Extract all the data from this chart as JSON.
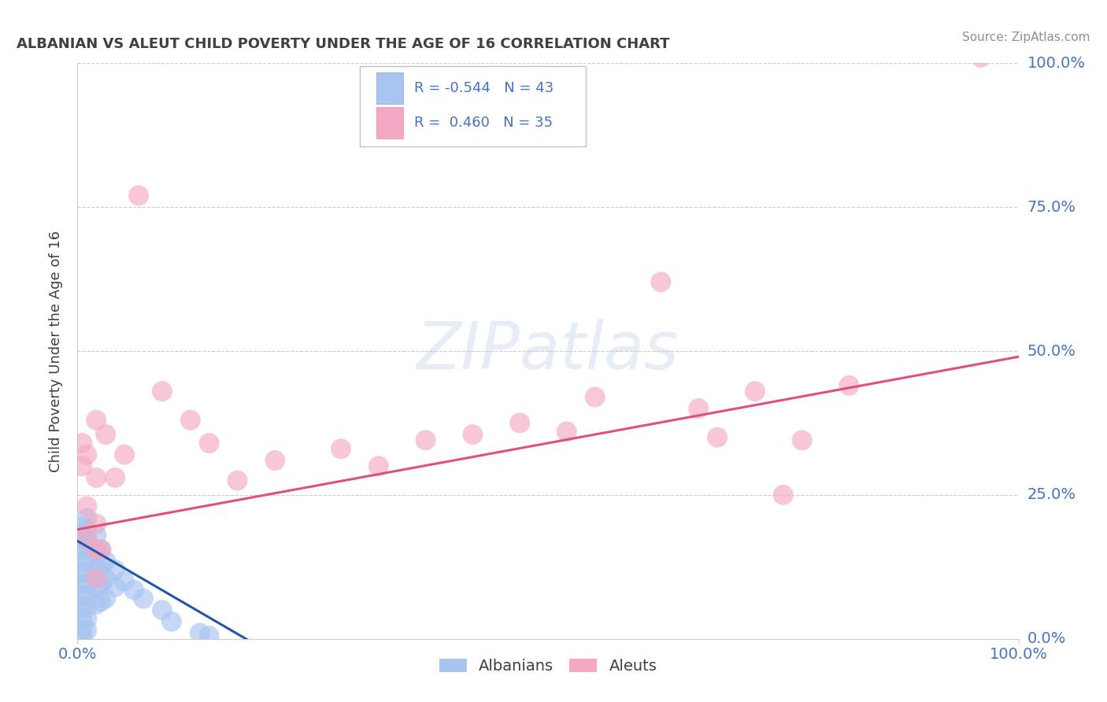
{
  "title": "ALBANIAN VS ALEUT CHILD POVERTY UNDER THE AGE OF 16 CORRELATION CHART",
  "source": "Source: ZipAtlas.com",
  "ylabel": "Child Poverty Under the Age of 16",
  "xlim": [
    0.0,
    1.0
  ],
  "ylim": [
    0.0,
    1.0
  ],
  "ytick_labels": [
    "0.0%",
    "25.0%",
    "50.0%",
    "75.0%",
    "100.0%"
  ],
  "ytick_positions": [
    0.0,
    0.25,
    0.5,
    0.75,
    1.0
  ],
  "grid_color": "#cccccc",
  "albanian_color": "#a8c4f0",
  "aleut_color": "#f4a8c4",
  "albanian_line_color": "#2255aa",
  "aleut_line_color": "#e0507a",
  "legend_r_albanian": "-0.544",
  "legend_n_albanian": "43",
  "legend_r_aleut": "0.460",
  "legend_n_aleut": "35",
  "albanian_scatter": [
    [
      0.005,
      0.195
    ],
    [
      0.005,
      0.175
    ],
    [
      0.005,
      0.155
    ],
    [
      0.005,
      0.135
    ],
    [
      0.005,
      0.115
    ],
    [
      0.005,
      0.095
    ],
    [
      0.005,
      0.075
    ],
    [
      0.005,
      0.055
    ],
    [
      0.005,
      0.035
    ],
    [
      0.005,
      0.015
    ],
    [
      0.005,
      0.005
    ],
    [
      0.01,
      0.21
    ],
    [
      0.01,
      0.19
    ],
    [
      0.01,
      0.17
    ],
    [
      0.01,
      0.155
    ],
    [
      0.01,
      0.135
    ],
    [
      0.01,
      0.115
    ],
    [
      0.01,
      0.095
    ],
    [
      0.01,
      0.075
    ],
    [
      0.01,
      0.055
    ],
    [
      0.01,
      0.035
    ],
    [
      0.01,
      0.015
    ],
    [
      0.02,
      0.18
    ],
    [
      0.02,
      0.15
    ],
    [
      0.02,
      0.12
    ],
    [
      0.02,
      0.09
    ],
    [
      0.02,
      0.06
    ],
    [
      0.025,
      0.155
    ],
    [
      0.025,
      0.125
    ],
    [
      0.025,
      0.095
    ],
    [
      0.025,
      0.065
    ],
    [
      0.03,
      0.135
    ],
    [
      0.03,
      0.105
    ],
    [
      0.03,
      0.07
    ],
    [
      0.04,
      0.12
    ],
    [
      0.04,
      0.09
    ],
    [
      0.05,
      0.1
    ],
    [
      0.06,
      0.085
    ],
    [
      0.07,
      0.07
    ],
    [
      0.09,
      0.05
    ],
    [
      0.1,
      0.03
    ],
    [
      0.13,
      0.01
    ],
    [
      0.14,
      0.005
    ]
  ],
  "aleut_scatter": [
    [
      0.005,
      0.34
    ],
    [
      0.005,
      0.3
    ],
    [
      0.01,
      0.32
    ],
    [
      0.01,
      0.23
    ],
    [
      0.01,
      0.175
    ],
    [
      0.02,
      0.38
    ],
    [
      0.02,
      0.28
    ],
    [
      0.02,
      0.2
    ],
    [
      0.02,
      0.155
    ],
    [
      0.02,
      0.105
    ],
    [
      0.025,
      0.155
    ],
    [
      0.03,
      0.355
    ],
    [
      0.04,
      0.28
    ],
    [
      0.05,
      0.32
    ],
    [
      0.065,
      0.77
    ],
    [
      0.09,
      0.43
    ],
    [
      0.12,
      0.38
    ],
    [
      0.14,
      0.34
    ],
    [
      0.17,
      0.275
    ],
    [
      0.21,
      0.31
    ],
    [
      0.28,
      0.33
    ],
    [
      0.32,
      0.3
    ],
    [
      0.37,
      0.345
    ],
    [
      0.42,
      0.355
    ],
    [
      0.47,
      0.375
    ],
    [
      0.52,
      0.36
    ],
    [
      0.55,
      0.42
    ],
    [
      0.62,
      0.62
    ],
    [
      0.66,
      0.4
    ],
    [
      0.68,
      0.35
    ],
    [
      0.72,
      0.43
    ],
    [
      0.75,
      0.25
    ],
    [
      0.77,
      0.345
    ],
    [
      0.82,
      0.44
    ],
    [
      0.96,
      1.01
    ]
  ],
  "albanian_trendline": [
    [
      0.0,
      0.17
    ],
    [
      0.2,
      -0.02
    ]
  ],
  "aleut_trendline": [
    [
      0.0,
      0.19
    ],
    [
      1.0,
      0.49
    ]
  ],
  "background_color": "#ffffff",
  "title_color": "#404040",
  "source_color": "#909090",
  "axis_label_color": "#404040",
  "tick_label_color": "#4472c4",
  "legend_r_color": "#4472c4"
}
